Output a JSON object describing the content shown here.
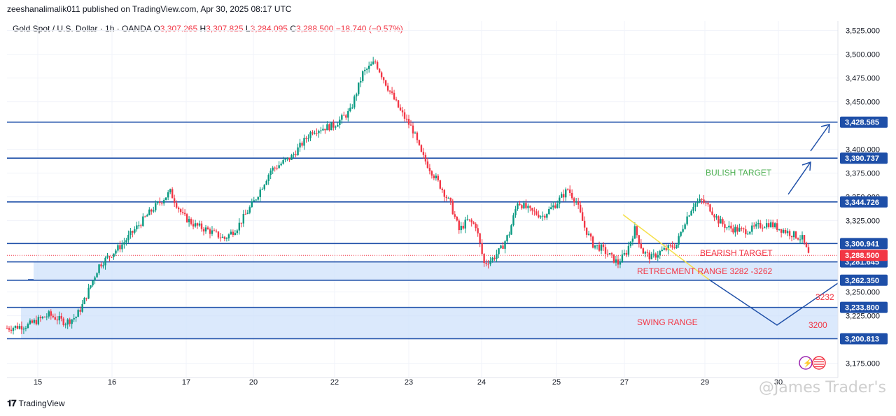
{
  "header": {
    "published": "zeeshanalimalik011 published on TradingView.com, Apr 30, 2025 08:17 UTC",
    "symbol": "Gold Spot / U.S. Dollar · 1h · OANDA",
    "o_label": "O",
    "o_value": "3,307.265",
    "h_label": "H",
    "h_value": "3,307.825",
    "l_label": "L",
    "l_value": "3,284.095",
    "c_label": "C",
    "c_value": "3,288.500",
    "change": "−18.740 (−0.57%)"
  },
  "footer": {
    "brand": "TradingView",
    "watermark": "@James Trader's"
  },
  "colors": {
    "up": "#089981",
    "down": "#f23645",
    "level": "#1e4fa8",
    "zone": "#cfe2fb",
    "tag": "#1e4fa8",
    "price_tag": "#f23645"
  },
  "chart_data": {
    "type": "candlestick",
    "ylim": [
      3160,
      3535
    ],
    "x_tick_labels": [
      "15",
      "16",
      "17",
      "20",
      "22",
      "23",
      "24",
      "25",
      "27",
      "29",
      "30"
    ],
    "y_tick_labels": [
      "3,525.000",
      "3,500.000",
      "3,475.000",
      "3,450.000",
      "3,400.000",
      "3,375.000",
      "3,350.000",
      "3,325.000",
      "3,250.000",
      "3,225.000",
      "3,175.000"
    ],
    "y_ticks": [
      3525,
      3500,
      3475,
      3450,
      3400,
      3375,
      3350,
      3325,
      3250,
      3225,
      3175
    ],
    "levels": [
      {
        "value": 3428.585,
        "label": "3,428.585"
      },
      {
        "value": 3390.737,
        "label": "3,390.737"
      },
      {
        "value": 3344.726,
        "label": "3,344.726"
      },
      {
        "value": 3300.941,
        "label": "3,300.941"
      },
      {
        "value": 3281.645,
        "label": "3,281.645"
      },
      {
        "value": 3262.35,
        "label": "3,262.350"
      },
      {
        "value": 3233.8,
        "label": "3,233.800"
      },
      {
        "value": 3200.813,
        "label": "3,200.813"
      }
    ],
    "current_price": {
      "value": 3288.5,
      "label": "3,288.500"
    },
    "zones": [
      {
        "name": "RETRECMENT RANGE 3282 -3262",
        "high": 3281.645,
        "low": 3262.35
      },
      {
        "name": "SWING RANGE",
        "high": 3233.8,
        "low": 3200.813
      }
    ],
    "annotations": [
      {
        "text": "BULISH TARGET",
        "color": "#4caf50"
      },
      {
        "text": "BEARISH TARGET",
        "color": "#f23645"
      },
      {
        "text": "RETRECMENT RANGE 3282 -3262",
        "color": "#f23645"
      },
      {
        "text": "SWING RANGE",
        "color": "#f23645"
      },
      {
        "text": "3232",
        "color": "#f23645"
      },
      {
        "text": "3200",
        "color": "#f23645"
      }
    ],
    "path": [
      [
        0,
        3212
      ],
      [
        10,
        3215
      ],
      [
        20,
        3226
      ],
      [
        28,
        3218
      ],
      [
        33,
        3224
      ],
      [
        36,
        3236
      ],
      [
        44,
        3278
      ],
      [
        55,
        3300
      ],
      [
        62,
        3318
      ],
      [
        70,
        3338
      ],
      [
        78,
        3355
      ],
      [
        84,
        3330
      ],
      [
        90,
        3320
      ],
      [
        96,
        3315
      ],
      [
        104,
        3306
      ],
      [
        110,
        3318
      ],
      [
        118,
        3345
      ],
      [
        126,
        3378
      ],
      [
        136,
        3392
      ],
      [
        146,
        3420
      ],
      [
        156,
        3425
      ],
      [
        164,
        3440
      ],
      [
        170,
        3480
      ],
      [
        176,
        3492
      ],
      [
        182,
        3465
      ],
      [
        188,
        3440
      ],
      [
        194,
        3420
      ],
      [
        198,
        3395
      ],
      [
        202,
        3380
      ],
      [
        208,
        3358
      ],
      [
        212,
        3342
      ],
      [
        216,
        3315
      ],
      [
        220,
        3325
      ],
      [
        224,
        3320
      ],
      [
        228,
        3280
      ],
      [
        232,
        3285
      ],
      [
        236,
        3295
      ],
      [
        240,
        3312
      ],
      [
        244,
        3345
      ],
      [
        250,
        3335
      ],
      [
        256,
        3330
      ],
      [
        262,
        3342
      ],
      [
        268,
        3358
      ],
      [
        272,
        3345
      ],
      [
        276,
        3318
      ],
      [
        280,
        3300
      ],
      [
        284,
        3296
      ],
      [
        288,
        3288
      ],
      [
        292,
        3280
      ],
      [
        296,
        3292
      ],
      [
        300,
        3316
      ],
      [
        304,
        3292
      ],
      [
        308,
        3286
      ],
      [
        312,
        3292
      ],
      [
        316,
        3296
      ],
      [
        320,
        3300
      ],
      [
        324,
        3325
      ],
      [
        328,
        3342
      ],
      [
        332,
        3346
      ],
      [
        336,
        3338
      ],
      [
        340,
        3325
      ],
      [
        344,
        3318
      ],
      [
        348,
        3316
      ],
      [
        352,
        3314
      ],
      [
        356,
        3316
      ],
      [
        360,
        3320
      ],
      [
        364,
        3322
      ],
      [
        368,
        3318
      ],
      [
        372,
        3314
      ],
      [
        376,
        3310
      ],
      [
        380,
        3306
      ],
      [
        383,
        3289
      ]
    ],
    "path_x_max": 383
  }
}
